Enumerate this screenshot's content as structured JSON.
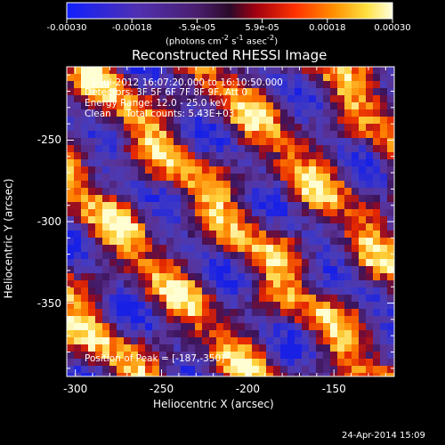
{
  "colorbar": {
    "tick_labels": [
      "-0.00030",
      "-0.00018",
      "-5.9e-05",
      "5.9e-05",
      "0.00018",
      "0.00030"
    ],
    "unit_html": "(photons cm<sup>-2</sup> s<sup>-1</sup> asec<sup>-2</sup>)",
    "range": [
      -0.0003,
      0.0003
    ]
  },
  "title": "Reconstructed RHESSI Image",
  "info": {
    "time_range": "1-Jul-2012 16:07:20.000 to 16:10:50.000",
    "detectors": "Detectors: 3F 5F 6F 7F 8F 9F, Att 0",
    "energy_range": "Energy Range: 12.0 - 25.0 keV",
    "method_counts": "Clean     Total counts: 5.43E+03",
    "peak": "Position of Peak = [-187,-350]"
  },
  "axes": {
    "xlabel": "Heliocentric X (arcsec)",
    "ylabel": "Heliocentric Y (arcsec)",
    "xlim": [
      -305,
      -115
    ],
    "ylim": [
      -395,
      -205
    ],
    "xticks": [
      -300,
      -250,
      -200,
      -150
    ],
    "yticks": [
      -250,
      -300,
      -350
    ],
    "xtick_labels": [
      "-300",
      "-250",
      "-200",
      "-150"
    ],
    "ytick_labels": [
      "-250",
      "-300",
      "-350"
    ]
  },
  "footer": {
    "date": "24-Apr-2014 15:09"
  }
}
